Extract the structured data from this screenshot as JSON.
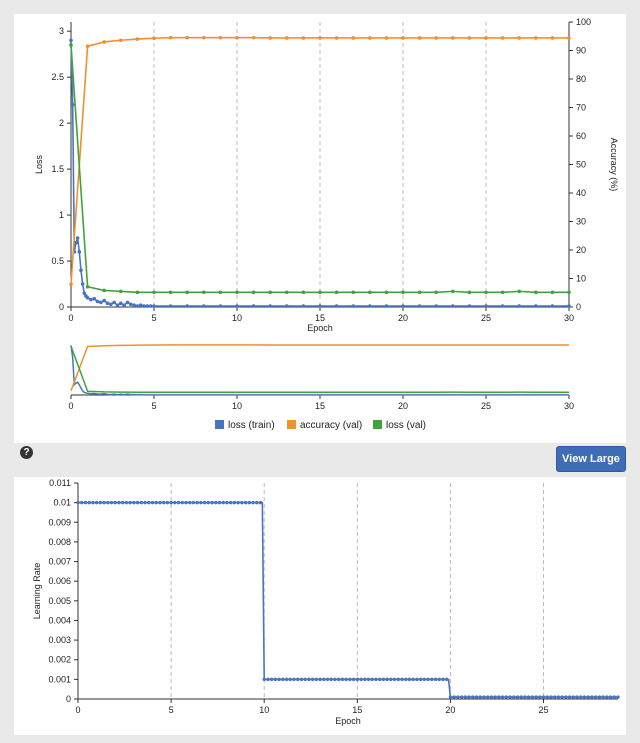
{
  "toolbar": {
    "view_large_label": "View Large",
    "help_icon": "question-circle-icon"
  },
  "chart_data": [
    {
      "type": "line",
      "title": "",
      "xlabel": "Epoch",
      "ylabel": "Loss",
      "y2label": "Accuracy (%)",
      "xlim": [
        0,
        30
      ],
      "ylim": [
        0,
        3.1
      ],
      "y2lim": [
        0,
        100
      ],
      "x_ticks": [
        0,
        5,
        10,
        15,
        20,
        25,
        30
      ],
      "y_ticks": [
        0,
        0.5,
        1,
        1.5,
        2,
        2.5,
        3
      ],
      "y2_ticks": [
        0,
        10,
        20,
        30,
        40,
        50,
        60,
        70,
        80,
        90,
        100
      ],
      "grid": "vertical dashed",
      "legend": "bottom",
      "series": [
        {
          "name": "loss (train)",
          "color": "#4a74c0",
          "axis": "left",
          "x": [
            0,
            0.1,
            0.2,
            0.3,
            0.4,
            0.5,
            0.6,
            0.7,
            0.8,
            0.9,
            1.0,
            1.2,
            1.4,
            1.6,
            1.8,
            2.0,
            2.2,
            2.4,
            2.6,
            2.8,
            3.0,
            3.2,
            3.4,
            3.6,
            3.8,
            4.0,
            4.2,
            4.4,
            4.6,
            4.8,
            5.0,
            6,
            7,
            8,
            9,
            10,
            11,
            12,
            13,
            14,
            15,
            16,
            17,
            18,
            19,
            20,
            21,
            22,
            23,
            24,
            25,
            26,
            27,
            28,
            29,
            30
          ],
          "values": [
            2.9,
            2.2,
            0.6,
            0.7,
            0.75,
            0.6,
            0.4,
            0.25,
            0.15,
            0.12,
            0.1,
            0.08,
            0.09,
            0.06,
            0.05,
            0.07,
            0.04,
            0.03,
            0.05,
            0.02,
            0.04,
            0.02,
            0.05,
            0.03,
            0.02,
            0.01,
            0.02,
            0.01,
            0.01,
            0.01,
            0.01,
            0.01,
            0.01,
            0.01,
            0.01,
            0.01,
            0.01,
            0.01,
            0.01,
            0.01,
            0.01,
            0.01,
            0.01,
            0.01,
            0.01,
            0.01,
            0.01,
            0.01,
            0.01,
            0.01,
            0.01,
            0.01,
            0.01,
            0.01,
            0.01,
            0.01
          ]
        },
        {
          "name": "accuracy (val)",
          "color": "#f0902e",
          "axis": "right",
          "x": [
            0,
            1,
            2,
            3,
            4,
            5,
            6,
            7,
            8,
            9,
            10,
            11,
            12,
            13,
            14,
            15,
            16,
            17,
            18,
            19,
            20,
            21,
            22,
            23,
            24,
            25,
            26,
            27,
            28,
            29,
            30
          ],
          "values": [
            8,
            91.5,
            93,
            93.6,
            94,
            94.3,
            94.5,
            94.5,
            94.5,
            94.5,
            94.5,
            94.5,
            94.4,
            94.4,
            94.4,
            94.4,
            94.4,
            94.4,
            94.4,
            94.4,
            94.4,
            94.4,
            94.4,
            94.4,
            94.4,
            94.4,
            94.4,
            94.4,
            94.4,
            94.4,
            94.4
          ]
        },
        {
          "name": "loss (val)",
          "color": "#3fa33a",
          "axis": "left",
          "x": [
            0,
            1,
            2,
            3,
            4,
            5,
            6,
            7,
            8,
            9,
            10,
            11,
            12,
            13,
            14,
            15,
            16,
            17,
            18,
            19,
            20,
            21,
            22,
            23,
            24,
            25,
            26,
            27,
            28,
            29,
            30
          ],
          "values": [
            2.85,
            0.22,
            0.18,
            0.17,
            0.16,
            0.16,
            0.16,
            0.16,
            0.16,
            0.16,
            0.16,
            0.16,
            0.16,
            0.16,
            0.16,
            0.16,
            0.16,
            0.16,
            0.16,
            0.16,
            0.16,
            0.16,
            0.16,
            0.17,
            0.16,
            0.16,
            0.16,
            0.17,
            0.16,
            0.16,
            0.16
          ]
        }
      ]
    },
    {
      "type": "line",
      "title": "",
      "xlabel": "Epoch",
      "ylabel": "Learning Rate",
      "xlim": [
        0,
        29
      ],
      "ylim": [
        0,
        0.011
      ],
      "x_ticks": [
        0,
        5,
        10,
        15,
        20,
        25
      ],
      "y_ticks": [
        "0",
        "0.001",
        "0.002",
        "0.003",
        "0.004",
        "0.005",
        "0.006",
        "0.007",
        "0.008",
        "0.009",
        "0.01",
        "0.011"
      ],
      "grid": "vertical dashed",
      "series": [
        {
          "name": "",
          "color": "#4a74c0",
          "steps": [
            {
              "from": 0,
              "to": 9.9,
              "value": 0.01
            },
            {
              "from": 10,
              "to": 19.9,
              "value": 0.001
            },
            {
              "from": 20,
              "to": 29,
              "value": 0.0001
            }
          ],
          "point_step": 0.2
        }
      ]
    }
  ]
}
